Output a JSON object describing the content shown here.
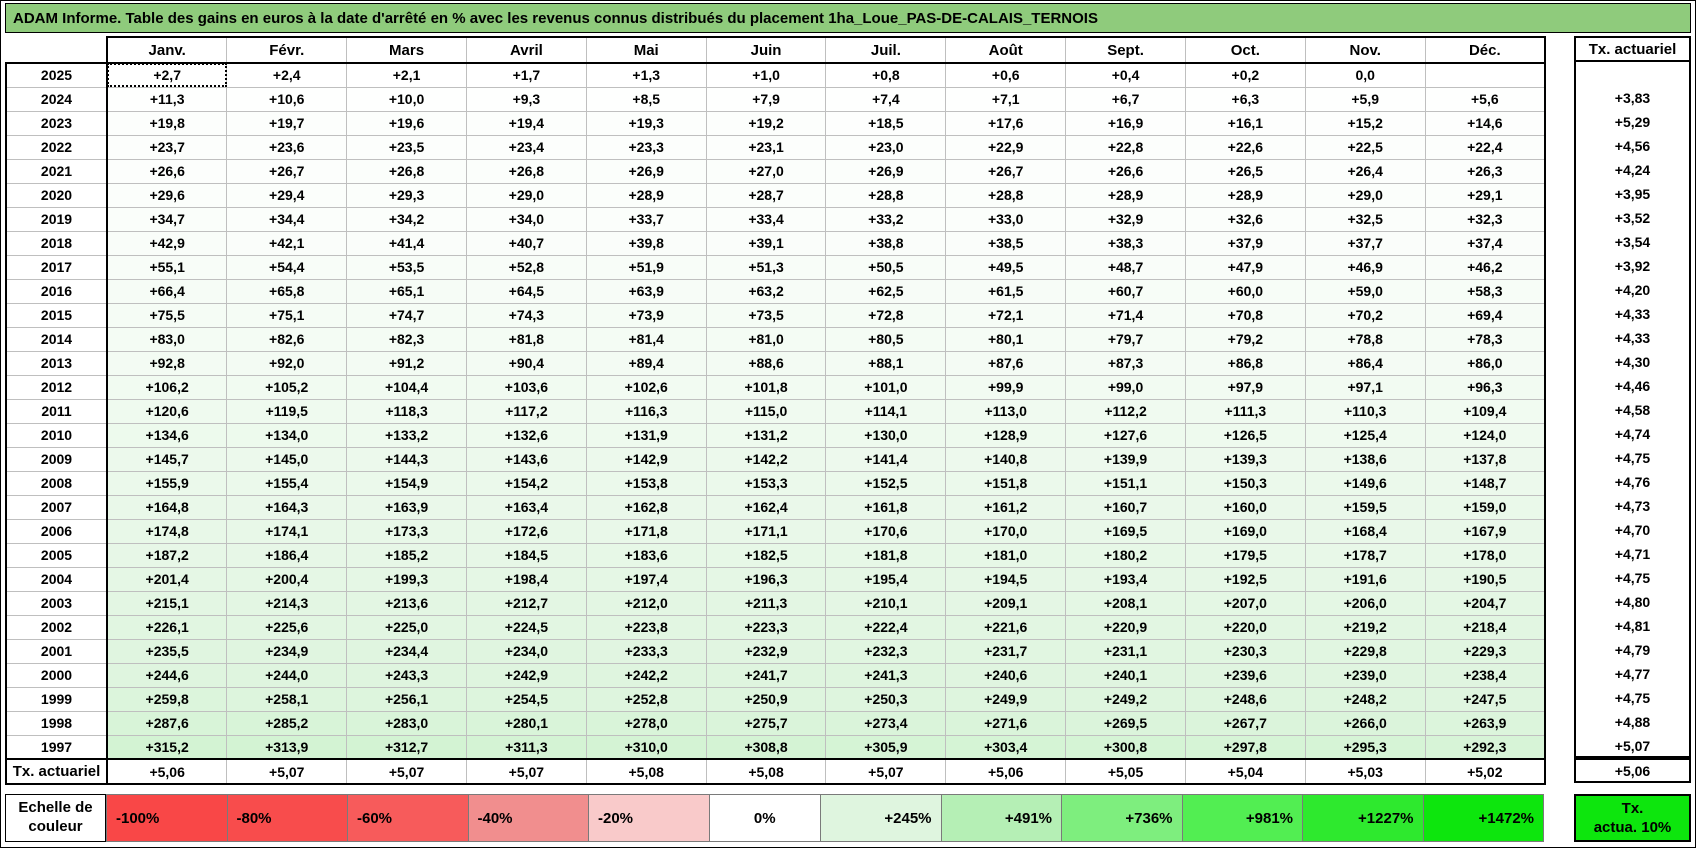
{
  "title": "ADAM Informe. Table des gains en euros à la date d'arrêté en % avec les revenus connus distribués du placement 1ha_Loue_PAS-DE-CALAIS_TERNOIS",
  "colors": {
    "title_bg": "#8FCB7C",
    "grid_line": "#BFBFBF",
    "cell_base": "#FFFFFF"
  },
  "selection": {
    "row_index": 0,
    "col_index": 0
  },
  "table": {
    "months": [
      "Janv.",
      "Févr.",
      "Mars",
      "Avril",
      "Mai",
      "Juin",
      "Juil.",
      "Août",
      "Sept.",
      "Oct.",
      "Nov.",
      "Déc."
    ],
    "tx_header": "Tx. actuariel",
    "tx_row_label": "Tx. actuariel",
    "rows": [
      {
        "year": "2025",
        "values": [
          "+2,7",
          "+2,4",
          "+2,1",
          "+1,7",
          "+1,3",
          "+1,0",
          "+0,8",
          "+0,6",
          "+0,4",
          "+0,2",
          "0,0",
          ""
        ],
        "tx": ""
      },
      {
        "year": "2024",
        "values": [
          "+11,3",
          "+10,6",
          "+10,0",
          "+9,3",
          "+8,5",
          "+7,9",
          "+7,4",
          "+7,1",
          "+6,7",
          "+6,3",
          "+5,9",
          "+5,6"
        ],
        "tx": "+3,83"
      },
      {
        "year": "2023",
        "values": [
          "+19,8",
          "+19,7",
          "+19,6",
          "+19,4",
          "+19,3",
          "+19,2",
          "+18,5",
          "+17,6",
          "+16,9",
          "+16,1",
          "+15,2",
          "+14,6"
        ],
        "tx": "+5,29"
      },
      {
        "year": "2022",
        "values": [
          "+23,7",
          "+23,6",
          "+23,5",
          "+23,4",
          "+23,3",
          "+23,1",
          "+23,0",
          "+22,9",
          "+22,8",
          "+22,6",
          "+22,5",
          "+22,4"
        ],
        "tx": "+4,56"
      },
      {
        "year": "2021",
        "values": [
          "+26,6",
          "+26,7",
          "+26,8",
          "+26,8",
          "+26,9",
          "+27,0",
          "+26,9",
          "+26,7",
          "+26,6",
          "+26,5",
          "+26,4",
          "+26,3"
        ],
        "tx": "+4,24"
      },
      {
        "year": "2020",
        "values": [
          "+29,6",
          "+29,4",
          "+29,3",
          "+29,0",
          "+28,9",
          "+28,7",
          "+28,8",
          "+28,8",
          "+28,9",
          "+28,9",
          "+29,0",
          "+29,1"
        ],
        "tx": "+3,95"
      },
      {
        "year": "2019",
        "values": [
          "+34,7",
          "+34,4",
          "+34,2",
          "+34,0",
          "+33,7",
          "+33,4",
          "+33,2",
          "+33,0",
          "+32,9",
          "+32,6",
          "+32,5",
          "+32,3"
        ],
        "tx": "+3,52"
      },
      {
        "year": "2018",
        "values": [
          "+42,9",
          "+42,1",
          "+41,4",
          "+40,7",
          "+39,8",
          "+39,1",
          "+38,8",
          "+38,5",
          "+38,3",
          "+37,9",
          "+37,7",
          "+37,4"
        ],
        "tx": "+3,54"
      },
      {
        "year": "2017",
        "values": [
          "+55,1",
          "+54,4",
          "+53,5",
          "+52,8",
          "+51,9",
          "+51,3",
          "+50,5",
          "+49,5",
          "+48,7",
          "+47,9",
          "+46,9",
          "+46,2"
        ],
        "tx": "+3,92"
      },
      {
        "year": "2016",
        "values": [
          "+66,4",
          "+65,8",
          "+65,1",
          "+64,5",
          "+63,9",
          "+63,2",
          "+62,5",
          "+61,5",
          "+60,7",
          "+60,0",
          "+59,0",
          "+58,3"
        ],
        "tx": "+4,20"
      },
      {
        "year": "2015",
        "values": [
          "+75,5",
          "+75,1",
          "+74,7",
          "+74,3",
          "+73,9",
          "+73,5",
          "+72,8",
          "+72,1",
          "+71,4",
          "+70,8",
          "+70,2",
          "+69,4"
        ],
        "tx": "+4,33"
      },
      {
        "year": "2014",
        "values": [
          "+83,0",
          "+82,6",
          "+82,3",
          "+81,8",
          "+81,4",
          "+81,0",
          "+80,5",
          "+80,1",
          "+79,7",
          "+79,2",
          "+78,8",
          "+78,3"
        ],
        "tx": "+4,33"
      },
      {
        "year": "2013",
        "values": [
          "+92,8",
          "+92,0",
          "+91,2",
          "+90,4",
          "+89,4",
          "+88,6",
          "+88,1",
          "+87,6",
          "+87,3",
          "+86,8",
          "+86,4",
          "+86,0"
        ],
        "tx": "+4,30"
      },
      {
        "year": "2012",
        "values": [
          "+106,2",
          "+105,2",
          "+104,4",
          "+103,6",
          "+102,6",
          "+101,8",
          "+101,0",
          "+99,9",
          "+99,0",
          "+97,9",
          "+97,1",
          "+96,3"
        ],
        "tx": "+4,46"
      },
      {
        "year": "2011",
        "values": [
          "+120,6",
          "+119,5",
          "+118,3",
          "+117,2",
          "+116,3",
          "+115,0",
          "+114,1",
          "+113,0",
          "+112,2",
          "+111,3",
          "+110,3",
          "+109,4"
        ],
        "tx": "+4,58"
      },
      {
        "year": "2010",
        "values": [
          "+134,6",
          "+134,0",
          "+133,2",
          "+132,6",
          "+131,9",
          "+131,2",
          "+130,0",
          "+128,9",
          "+127,6",
          "+126,5",
          "+125,4",
          "+124,0"
        ],
        "tx": "+4,74"
      },
      {
        "year": "2009",
        "values": [
          "+145,7",
          "+145,0",
          "+144,3",
          "+143,6",
          "+142,9",
          "+142,2",
          "+141,4",
          "+140,8",
          "+139,9",
          "+139,3",
          "+138,6",
          "+137,8"
        ],
        "tx": "+4,75"
      },
      {
        "year": "2008",
        "values": [
          "+155,9",
          "+155,4",
          "+154,9",
          "+154,2",
          "+153,8",
          "+153,3",
          "+152,5",
          "+151,8",
          "+151,1",
          "+150,3",
          "+149,6",
          "+148,7"
        ],
        "tx": "+4,76"
      },
      {
        "year": "2007",
        "values": [
          "+164,8",
          "+164,3",
          "+163,9",
          "+163,4",
          "+162,8",
          "+162,4",
          "+161,8",
          "+161,2",
          "+160,7",
          "+160,0",
          "+159,5",
          "+159,0"
        ],
        "tx": "+4,73"
      },
      {
        "year": "2006",
        "values": [
          "+174,8",
          "+174,1",
          "+173,3",
          "+172,6",
          "+171,8",
          "+171,1",
          "+170,6",
          "+170,0",
          "+169,5",
          "+169,0",
          "+168,4",
          "+167,9"
        ],
        "tx": "+4,70"
      },
      {
        "year": "2005",
        "values": [
          "+187,2",
          "+186,4",
          "+185,2",
          "+184,5",
          "+183,6",
          "+182,5",
          "+181,8",
          "+181,0",
          "+180,2",
          "+179,5",
          "+178,7",
          "+178,0"
        ],
        "tx": "+4,71"
      },
      {
        "year": "2004",
        "values": [
          "+201,4",
          "+200,4",
          "+199,3",
          "+198,4",
          "+197,4",
          "+196,3",
          "+195,4",
          "+194,5",
          "+193,4",
          "+192,5",
          "+191,6",
          "+190,5"
        ],
        "tx": "+4,75"
      },
      {
        "year": "2003",
        "values": [
          "+215,1",
          "+214,3",
          "+213,6",
          "+212,7",
          "+212,0",
          "+211,3",
          "+210,1",
          "+209,1",
          "+208,1",
          "+207,0",
          "+206,0",
          "+204,7"
        ],
        "tx": "+4,80"
      },
      {
        "year": "2002",
        "values": [
          "+226,1",
          "+225,6",
          "+225,0",
          "+224,5",
          "+223,8",
          "+223,3",
          "+222,4",
          "+221,6",
          "+220,9",
          "+220,0",
          "+219,2",
          "+218,4"
        ],
        "tx": "+4,81"
      },
      {
        "year": "2001",
        "values": [
          "+235,5",
          "+234,9",
          "+234,4",
          "+234,0",
          "+233,3",
          "+232,9",
          "+232,3",
          "+231,7",
          "+231,1",
          "+230,3",
          "+229,8",
          "+229,3"
        ],
        "tx": "+4,79"
      },
      {
        "year": "2000",
        "values": [
          "+244,6",
          "+244,0",
          "+243,3",
          "+242,9",
          "+242,2",
          "+241,7",
          "+241,3",
          "+240,6",
          "+240,1",
          "+239,6",
          "+239,0",
          "+238,4"
        ],
        "tx": "+4,77"
      },
      {
        "year": "1999",
        "values": [
          "+259,8",
          "+258,1",
          "+256,1",
          "+254,5",
          "+252,8",
          "+250,9",
          "+250,3",
          "+249,9",
          "+249,2",
          "+248,6",
          "+248,2",
          "+247,5"
        ],
        "tx": "+4,75"
      },
      {
        "year": "1998",
        "values": [
          "+287,6",
          "+285,2",
          "+283,0",
          "+280,1",
          "+278,0",
          "+275,7",
          "+273,4",
          "+271,6",
          "+269,5",
          "+267,7",
          "+266,0",
          "+263,9"
        ],
        "tx": "+4,88"
      },
      {
        "year": "1997",
        "values": [
          "+315,2",
          "+313,9",
          "+312,7",
          "+311,3",
          "+310,0",
          "+308,8",
          "+305,9",
          "+303,4",
          "+300,8",
          "+297,8",
          "+295,3",
          "+292,3"
        ],
        "tx": "+5,07"
      }
    ],
    "tx_row": [
      "+5,06",
      "+5,07",
      "+5,07",
      "+5,07",
      "+5,08",
      "+5,08",
      "+5,07",
      "+5,06",
      "+5,05",
      "+5,04",
      "+5,03",
      "+5,02"
    ],
    "tx_row_tx": "+5,06"
  },
  "legend": {
    "label_line1": "Echelle de",
    "label_line2": "couleur",
    "cells": [
      {
        "label": "-100%",
        "value": -100,
        "color": "#F94747"
      },
      {
        "label": "-80%",
        "value": -80,
        "color": "#F84C4C"
      },
      {
        "label": "-60%",
        "value": -60,
        "color": "#F75B5B"
      },
      {
        "label": "-40%",
        "value": -40,
        "color": "#F18E8E"
      },
      {
        "label": "-20%",
        "value": -20,
        "color": "#F9CACA"
      },
      {
        "label": "0%",
        "value": 0,
        "color": "#FFFFFF"
      },
      {
        "label": "+245%",
        "value": 245,
        "color": "#DFF5DF"
      },
      {
        "label": "+491%",
        "value": 491,
        "color": "#B5EFB5"
      },
      {
        "label": "+736%",
        "value": 736,
        "color": "#7EEE7E"
      },
      {
        "label": "+981%",
        "value": 981,
        "color": "#52EE52"
      },
      {
        "label": "+1227%",
        "value": 1227,
        "color": "#2EE92E"
      },
      {
        "label": "+1472%",
        "value": 1472,
        "color": "#0DE60D"
      }
    ],
    "tx_box": {
      "line1": "Tx.",
      "line2": "actua. 10%",
      "color": "#0DE60D"
    }
  }
}
